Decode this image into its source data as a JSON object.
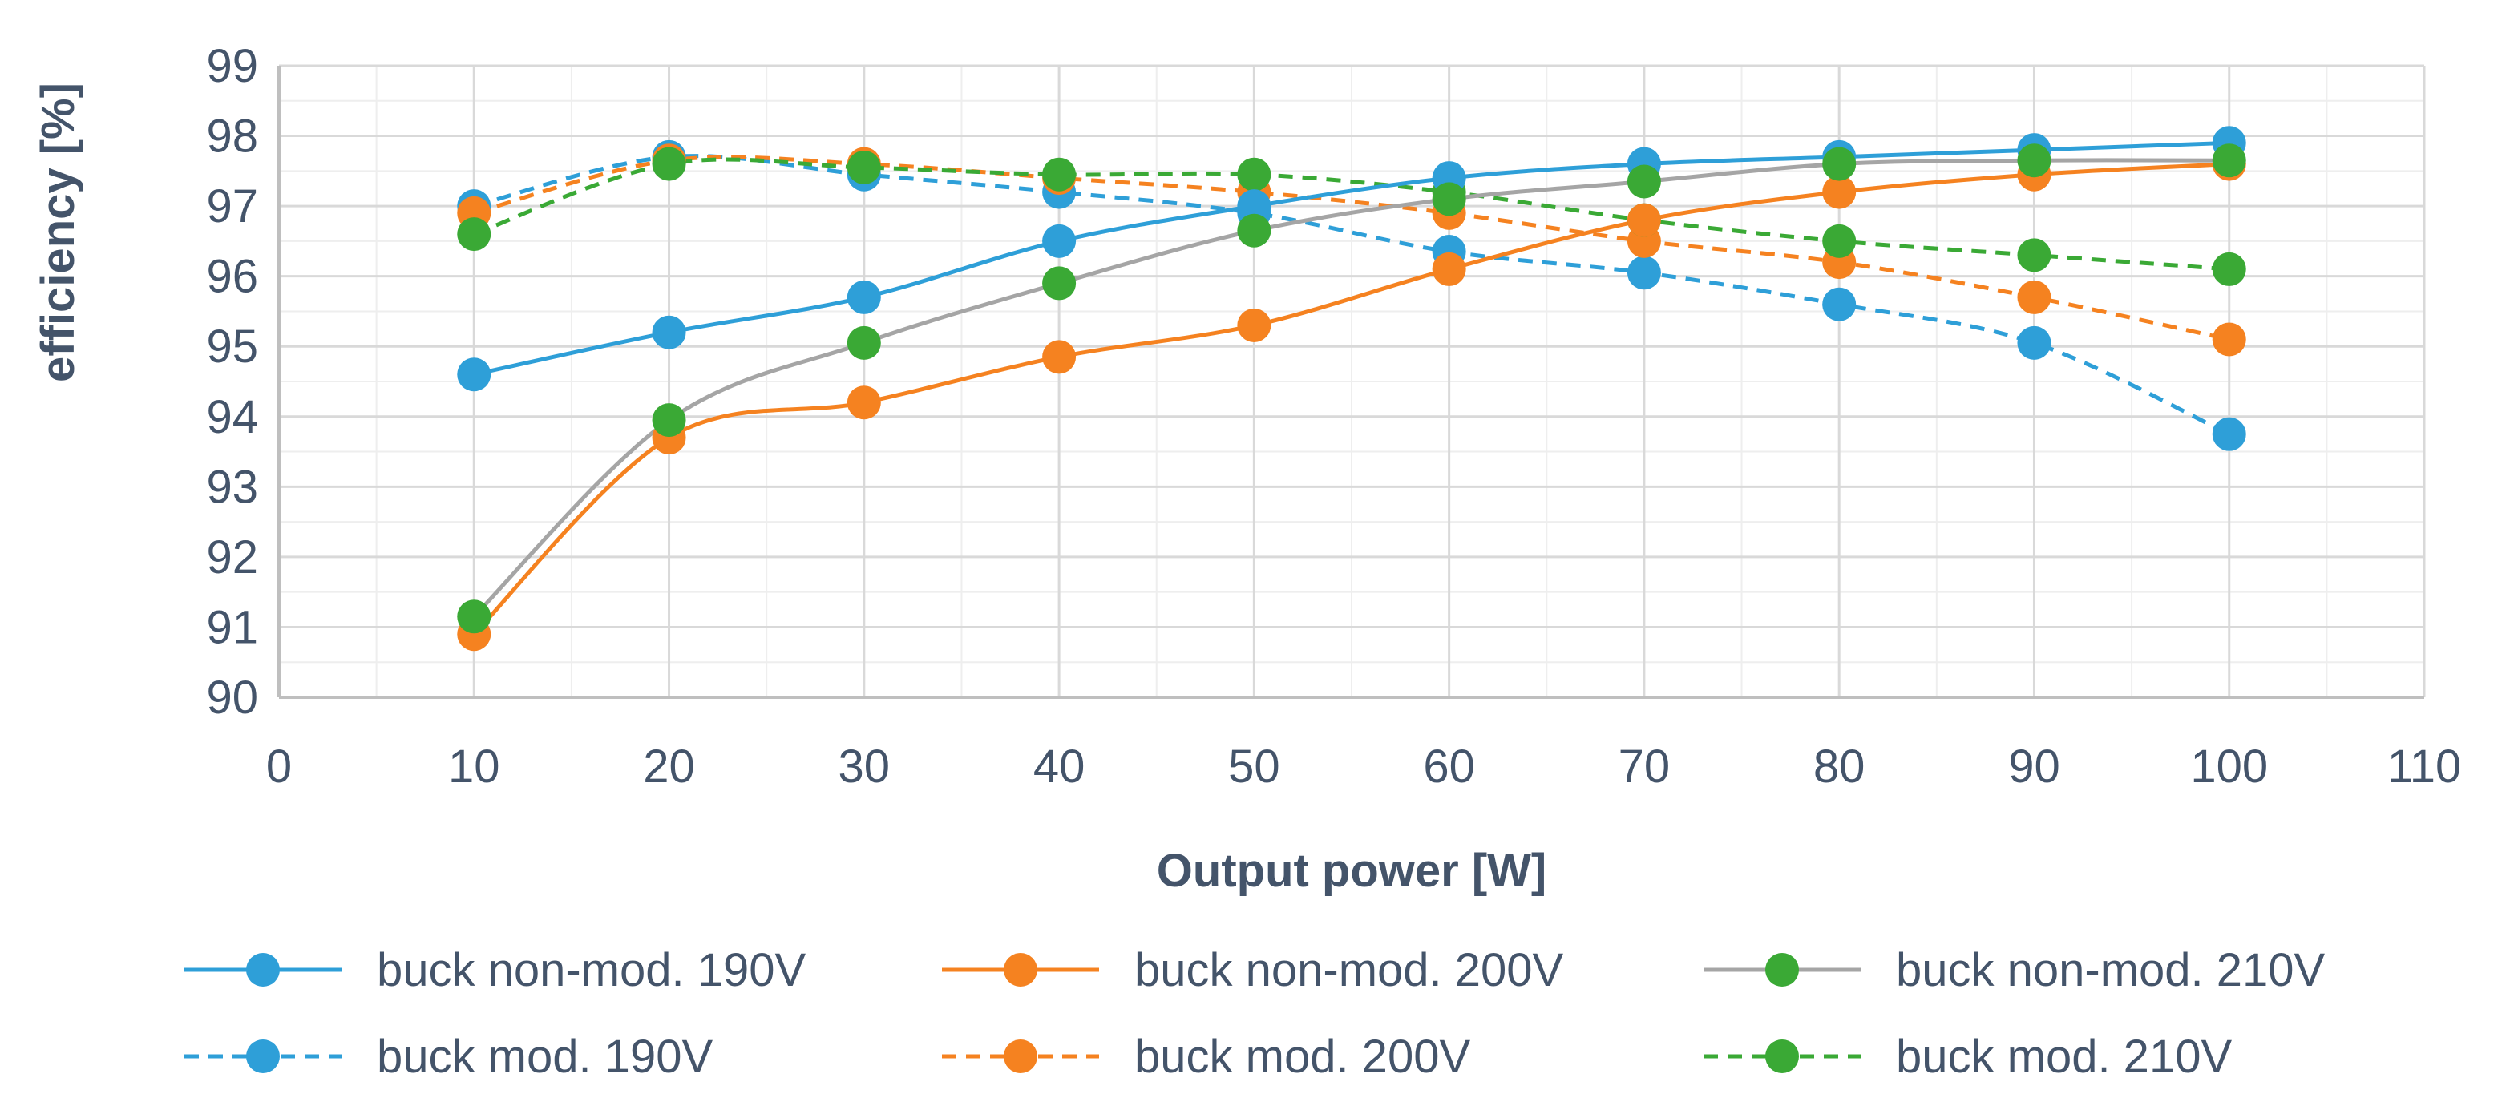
{
  "chart_data": {
    "type": "line",
    "title": "",
    "xlabel": "Output power [W]",
    "ylabel": "efficiency [%]",
    "xlim": [
      0,
      110
    ],
    "ylim": [
      90,
      99
    ],
    "x_ticks": [
      0,
      10,
      20,
      30,
      40,
      50,
      60,
      70,
      80,
      90,
      100,
      110
    ],
    "y_ticks": [
      90,
      91,
      92,
      93,
      94,
      95,
      96,
      97,
      98,
      99
    ],
    "grid": true,
    "legend_position": "bottom",
    "x": [
      10,
      20,
      30,
      40,
      50,
      60,
      70,
      80,
      90,
      100
    ],
    "series": [
      {
        "name": "buck non-mod. 190V",
        "color": "#2e9fd8",
        "line_style": "solid",
        "marker_color": "#2e9fd8",
        "values": [
          94.6,
          95.2,
          95.7,
          96.5,
          97.0,
          97.4,
          97.6,
          97.7,
          97.8,
          97.9
        ]
      },
      {
        "name": "buck non-mod. 200V",
        "color": "#f58220",
        "line_style": "solid",
        "marker_color": "#f58220",
        "values": [
          90.9,
          93.7,
          94.2,
          94.85,
          95.3,
          96.1,
          96.8,
          97.2,
          97.45,
          97.6
        ]
      },
      {
        "name": "buck non-mod. 210V",
        "color": "#a5a5a5",
        "line_style": "solid",
        "marker_color": "#3aa935",
        "values": [
          91.15,
          93.95,
          95.05,
          95.9,
          96.65,
          97.1,
          97.35,
          97.6,
          97.65,
          97.65
        ]
      },
      {
        "name": "buck mod. 190V",
        "color": "#2e9fd8",
        "line_style": "dashed",
        "marker_color": "#2e9fd8",
        "values": [
          97.0,
          97.7,
          97.45,
          97.2,
          96.9,
          96.35,
          96.05,
          95.6,
          95.05,
          93.75
        ]
      },
      {
        "name": "buck mod. 200V",
        "color": "#f58220",
        "line_style": "dashed",
        "marker_color": "#f58220",
        "values": [
          96.9,
          97.65,
          97.6,
          97.4,
          97.2,
          96.9,
          96.5,
          96.2,
          95.7,
          95.1
        ]
      },
      {
        "name": "buck mod. 210V",
        "color": "#3aa935",
        "line_style": "dashed",
        "marker_color": "#3aa935",
        "values": [
          96.6,
          97.6,
          97.55,
          97.45,
          97.45,
          97.2,
          96.8,
          96.5,
          96.3,
          96.1
        ]
      }
    ]
  }
}
